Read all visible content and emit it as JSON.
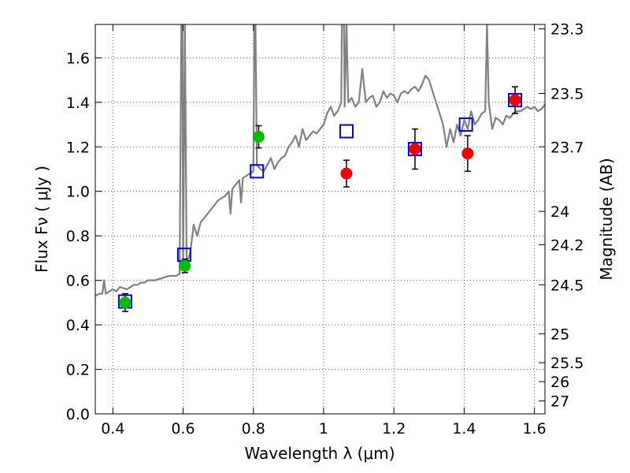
{
  "chart_data": {
    "type": "scatter",
    "xlabel": "Wavelength  λ (μm)",
    "ylabel": "Flux  Fν  ( μJy )",
    "y2label": "Magnitude (AB)",
    "xlim": [
      0.35,
      1.63
    ],
    "ylim": [
      0.0,
      1.75
    ],
    "grid": true,
    "xticks": [
      0.4,
      0.6,
      0.8,
      1.0,
      1.2,
      1.4,
      1.6
    ],
    "xtick_labels": [
      "0.4",
      "0.6",
      "0.8",
      "1",
      "1.2",
      "1.4",
      "1.6"
    ],
    "yticks": [
      0.0,
      0.2,
      0.4,
      0.6,
      0.8,
      1.0,
      1.2,
      1.4,
      1.6
    ],
    "ytick_labels": [
      "0.0",
      "0.2",
      "0.4",
      "0.6",
      "0.8",
      "1.0",
      "1.2",
      "1.4",
      "1.6"
    ],
    "right_ticks": [
      {
        "label": "23.3",
        "flux": 1.73
      },
      {
        "label": "23.5",
        "flux": 1.44
      },
      {
        "label": "23.7",
        "flux": 1.2
      },
      {
        "label": "24",
        "flux": 0.91
      },
      {
        "label": "24.2",
        "flux": 0.76
      },
      {
        "label": "24.5",
        "flux": 0.58
      },
      {
        "label": "25",
        "flux": 0.36
      },
      {
        "label": "25.5",
        "flux": 0.23
      },
      {
        "label": "26",
        "flux": 0.145
      },
      {
        "label": "27",
        "flux": 0.058
      }
    ],
    "colors": {
      "model": "#808080",
      "green": "#00bb00",
      "red": "#ee0000",
      "square": "#0000cc",
      "grid": "#000000"
    },
    "series": [
      {
        "kind": "spectrum",
        "points": [
          [
            0.35,
            0.53
          ],
          [
            0.36,
            0.54
          ],
          [
            0.37,
            0.54
          ],
          [
            0.375,
            0.6
          ],
          [
            0.38,
            0.54
          ],
          [
            0.39,
            0.55
          ],
          [
            0.4,
            0.56
          ],
          [
            0.41,
            0.55
          ],
          [
            0.42,
            0.57
          ],
          [
            0.43,
            0.565
          ],
          [
            0.44,
            0.56
          ],
          [
            0.45,
            0.57
          ],
          [
            0.46,
            0.58
          ],
          [
            0.47,
            0.58
          ],
          [
            0.48,
            0.59
          ],
          [
            0.49,
            0.59
          ],
          [
            0.5,
            0.6
          ],
          [
            0.52,
            0.6
          ],
          [
            0.54,
            0.61
          ],
          [
            0.56,
            0.62
          ],
          [
            0.58,
            0.62
          ],
          [
            0.59,
            0.63
          ],
          [
            0.595,
            1.76
          ],
          [
            0.598,
            1.76
          ],
          [
            0.6,
            0.65
          ],
          [
            0.605,
            1.76
          ],
          [
            0.61,
            0.68
          ],
          [
            0.62,
            0.72
          ],
          [
            0.63,
            0.85
          ],
          [
            0.64,
            0.8
          ],
          [
            0.65,
            0.86
          ],
          [
            0.66,
            0.88
          ],
          [
            0.67,
            0.9
          ],
          [
            0.68,
            0.92
          ],
          [
            0.69,
            0.94
          ],
          [
            0.7,
            0.96
          ],
          [
            0.71,
            0.97
          ],
          [
            0.72,
            0.98
          ],
          [
            0.73,
            1.0
          ],
          [
            0.735,
            0.9
          ],
          [
            0.74,
            1.01
          ],
          [
            0.75,
            1.03
          ],
          [
            0.76,
            1.05
          ],
          [
            0.765,
            0.95
          ],
          [
            0.77,
            1.06
          ],
          [
            0.78,
            1.07
          ],
          [
            0.79,
            1.08
          ],
          [
            0.8,
            1.09
          ],
          [
            0.803,
            1.76
          ],
          [
            0.806,
            1.76
          ],
          [
            0.81,
            1.12
          ],
          [
            0.82,
            1.1
          ],
          [
            0.83,
            1.09
          ],
          [
            0.84,
            1.12
          ],
          [
            0.85,
            1.15
          ],
          [
            0.86,
            1.1
          ],
          [
            0.87,
            1.13
          ],
          [
            0.88,
            1.15
          ],
          [
            0.89,
            1.16
          ],
          [
            0.9,
            1.2
          ],
          [
            0.91,
            1.22
          ],
          [
            0.92,
            1.25
          ],
          [
            0.93,
            1.2
          ],
          [
            0.94,
            1.28
          ],
          [
            0.95,
            1.23
          ],
          [
            0.96,
            1.25
          ],
          [
            0.97,
            1.27
          ],
          [
            0.98,
            1.26
          ],
          [
            0.99,
            1.28
          ],
          [
            1.0,
            1.3
          ],
          [
            1.01,
            1.35
          ],
          [
            1.02,
            1.38
          ],
          [
            1.03,
            1.34
          ],
          [
            1.04,
            1.36
          ],
          [
            1.05,
            1.4
          ],
          [
            1.052,
            1.76
          ],
          [
            1.058,
            1.76
          ],
          [
            1.06,
            1.38
          ],
          [
            1.065,
            1.76
          ],
          [
            1.07,
            1.4
          ],
          [
            1.08,
            1.42
          ],
          [
            1.09,
            1.38
          ],
          [
            1.1,
            1.4
          ],
          [
            1.11,
            1.55
          ],
          [
            1.12,
            1.4
          ],
          [
            1.13,
            1.42
          ],
          [
            1.14,
            1.43
          ],
          [
            1.15,
            1.38
          ],
          [
            1.16,
            1.4
          ],
          [
            1.17,
            1.45
          ],
          [
            1.18,
            1.42
          ],
          [
            1.19,
            1.44
          ],
          [
            1.2,
            1.43
          ],
          [
            1.21,
            1.4
          ],
          [
            1.22,
            1.44
          ],
          [
            1.23,
            1.45
          ],
          [
            1.24,
            1.44
          ],
          [
            1.25,
            1.46
          ],
          [
            1.26,
            1.47
          ],
          [
            1.27,
            1.45
          ],
          [
            1.28,
            1.48
          ],
          [
            1.29,
            1.52
          ],
          [
            1.3,
            1.5
          ],
          [
            1.31,
            1.45
          ],
          [
            1.32,
            1.4
          ],
          [
            1.33,
            1.35
          ],
          [
            1.34,
            1.3
          ],
          [
            1.35,
            1.2
          ],
          [
            1.36,
            1.28
          ],
          [
            1.37,
            1.22
          ],
          [
            1.38,
            1.3
          ],
          [
            1.39,
            1.25
          ],
          [
            1.4,
            1.32
          ],
          [
            1.41,
            1.28
          ],
          [
            1.42,
            1.36
          ],
          [
            1.43,
            1.3
          ],
          [
            1.44,
            1.32
          ],
          [
            1.45,
            1.35
          ],
          [
            1.46,
            1.36
          ],
          [
            1.465,
            1.76
          ],
          [
            1.47,
            1.4
          ],
          [
            1.48,
            1.28
          ],
          [
            1.49,
            1.33
          ],
          [
            1.5,
            1.32
          ],
          [
            1.51,
            1.3
          ],
          [
            1.52,
            1.34
          ],
          [
            1.53,
            1.33
          ],
          [
            1.54,
            1.35
          ],
          [
            1.55,
            1.36
          ],
          [
            1.56,
            1.36
          ],
          [
            1.57,
            1.37
          ],
          [
            1.58,
            1.38
          ],
          [
            1.59,
            1.37
          ],
          [
            1.6,
            1.38
          ],
          [
            1.61,
            1.36
          ],
          [
            1.62,
            1.37
          ],
          [
            1.63,
            1.39
          ]
        ]
      },
      {
        "kind": "green-points",
        "points": [
          {
            "x": 0.435,
            "y": 0.5,
            "err": 0.04
          },
          {
            "x": 0.605,
            "y": 0.665,
            "err": 0.03
          },
          {
            "x": 0.815,
            "y": 1.245,
            "err": 0.05
          }
        ]
      },
      {
        "kind": "red-points",
        "points": [
          {
            "x": 1.065,
            "y": 1.08,
            "err": 0.06
          },
          {
            "x": 1.26,
            "y": 1.19,
            "err": 0.09
          },
          {
            "x": 1.41,
            "y": 1.17,
            "err": 0.08
          },
          {
            "x": 1.545,
            "y": 1.41,
            "err": 0.06
          }
        ]
      },
      {
        "kind": "model-squares",
        "points": [
          {
            "x": 0.435,
            "y": 0.505
          },
          {
            "x": 0.603,
            "y": 0.715
          },
          {
            "x": 0.81,
            "y": 1.09
          },
          {
            "x": 1.065,
            "y": 1.27
          },
          {
            "x": 1.26,
            "y": 1.19
          },
          {
            "x": 1.405,
            "y": 1.3
          },
          {
            "x": 1.545,
            "y": 1.41
          }
        ]
      }
    ]
  }
}
